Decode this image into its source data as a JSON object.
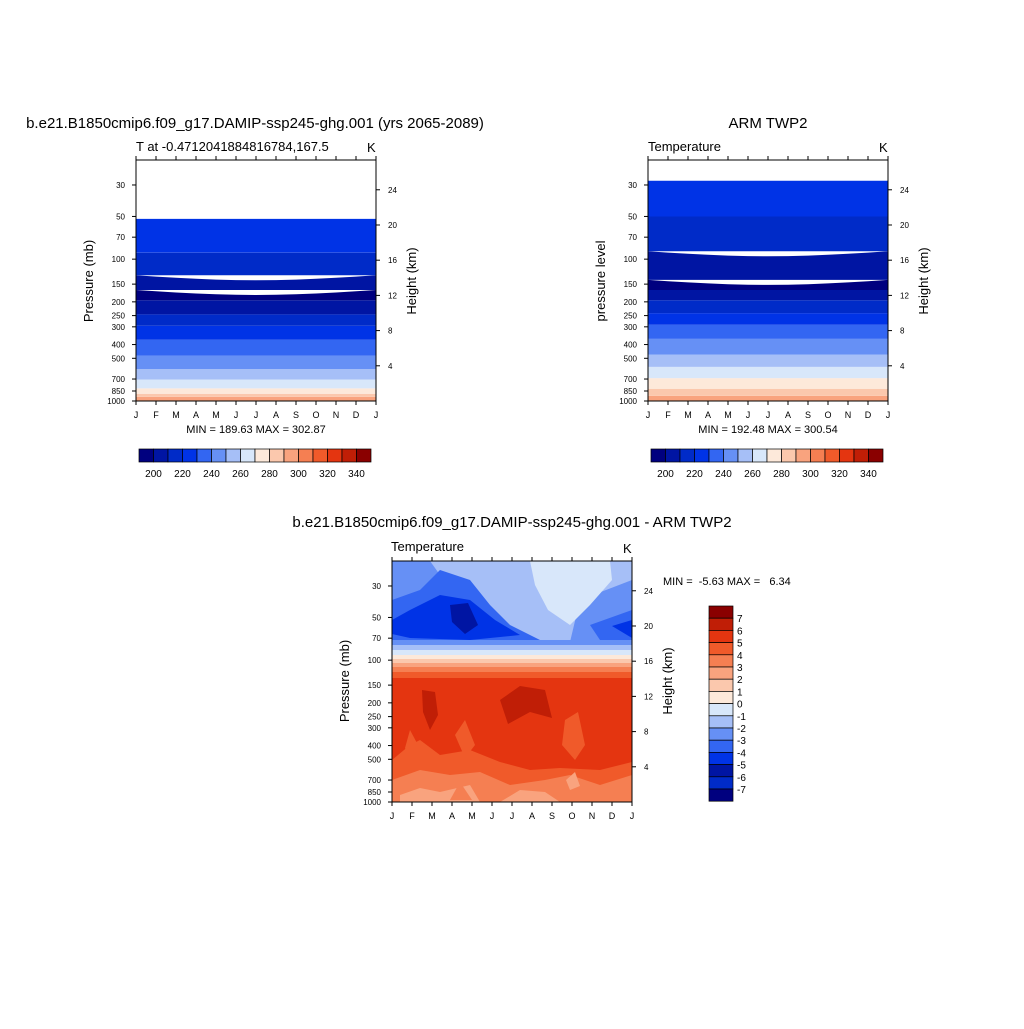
{
  "palette": [
    "#00007f",
    "#0015a3",
    "#002bc8",
    "#0033e6",
    "#3366f2",
    "#6690f5",
    "#a6bff7",
    "#d8e7fa",
    "#fde9da",
    "#fbc8ad",
    "#f9a37e",
    "#f57f52",
    "#f05a2a",
    "#e43510",
    "#c01e06",
    "#8a0000"
  ],
  "chart_data": [
    {
      "type": "heatmap",
      "title": "b.e21.B1850cmip6.f09_g17.DAMIP-ssp245-ghg.001 (yrs 2065-2089)",
      "left_label": "T at -0.4712041884816784,167.5",
      "right_label": "K",
      "ylabel": "Pressure (mb)",
      "ylabel_right": "Height (km)",
      "x_ticks": [
        "J",
        "F",
        "M",
        "A",
        "M",
        "J",
        "J",
        "A",
        "S",
        "O",
        "N",
        "D",
        "J"
      ],
      "p_ticks": [
        "30",
        "50",
        "70",
        "100",
        "150",
        "200",
        "250",
        "300",
        "400",
        "500",
        "700",
        "850",
        "1000"
      ],
      "h_ticks": [
        "24",
        "20",
        "16",
        "12",
        "8",
        "4"
      ],
      "stats": "MIN = 189.63 MAX = 302.87",
      "colorbar_labels": [
        "200",
        "220",
        "240",
        "260",
        "280",
        "300",
        "320",
        "340"
      ],
      "level_boundaries_mb": [
        1000,
        935,
        890,
        815,
        705,
        595,
        480,
        370,
        295,
        245,
        195,
        165,
        130,
        90,
        52,
        28,
        20
      ],
      "level_classes": [
        10,
        9,
        8,
        7,
        6,
        5,
        4,
        3,
        2,
        1,
        0,
        1,
        2,
        3
      ]
    },
    {
      "type": "heatmap",
      "title": "ARM TWP2",
      "left_label": "Temperature",
      "right_label": "K",
      "ylabel": "pressure level",
      "ylabel_right": "Height (km)",
      "x_ticks": [
        "J",
        "F",
        "M",
        "A",
        "M",
        "J",
        "J",
        "A",
        "S",
        "O",
        "N",
        "D",
        "J"
      ],
      "p_ticks": [
        "30",
        "50",
        "70",
        "100",
        "150",
        "200",
        "250",
        "300",
        "400",
        "500",
        "700",
        "850",
        "1000"
      ],
      "h_ticks": [
        "24",
        "20",
        "16",
        "12",
        "8",
        "4"
      ],
      "stats": "MIN = 192.48 MAX = 300.54",
      "colorbar_labels": [
        "200",
        "220",
        "240",
        "260",
        "280",
        "300",
        "320",
        "340"
      ],
      "level_boundaries_mb": [
        1000,
        920,
        820,
        690,
        575,
        470,
        365,
        290,
        240,
        195,
        165,
        140,
        88,
        50,
        28,
        20
      ],
      "level_classes": [
        10,
        9,
        8,
        7,
        6,
        5,
        4,
        3,
        2,
        1,
        0,
        1,
        2,
        3
      ]
    },
    {
      "type": "heatmap",
      "title": "b.e21.B1850cmip6.f09_g17.DAMIP-ssp245-ghg.001 - ARM TWP2",
      "left_label": "Temperature",
      "right_label": "K",
      "ylabel": "Pressure (mb)",
      "ylabel_right": "Height (km)",
      "x_ticks": [
        "J",
        "F",
        "M",
        "A",
        "M",
        "J",
        "J",
        "A",
        "S",
        "O",
        "N",
        "D",
        "J"
      ],
      "p_ticks": [
        "30",
        "50",
        "70",
        "100",
        "150",
        "200",
        "250",
        "300",
        "400",
        "500",
        "700",
        "850",
        "1000"
      ],
      "h_ticks": [
        "24",
        "20",
        "16",
        "12",
        "8",
        "4"
      ],
      "stats": "MIN =  -5.63 MAX =   6.34",
      "colorbar_labels": [
        "7",
        "6",
        "5",
        "4",
        "3",
        "2",
        "1",
        "0",
        "-1",
        "-2",
        "-3",
        "-4",
        "-5",
        "-6",
        "-7"
      ]
    }
  ]
}
